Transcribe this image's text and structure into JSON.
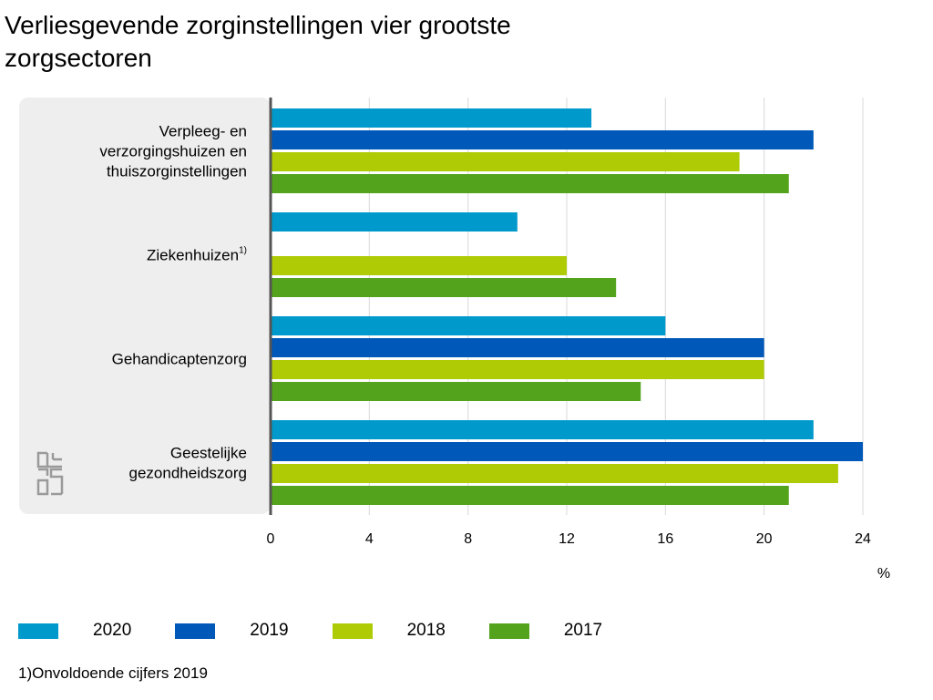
{
  "title": "Verliesgevende zorginstellingen vier grootste zorgsectoren",
  "footnote": "1)Onvoldoende cijfers 2019",
  "logo_text": "cbs",
  "legend": {
    "items": [
      {
        "label": "2020",
        "color": "#0099cc"
      },
      {
        "label": "2019",
        "color": "#0058b8"
      },
      {
        "label": "2018",
        "color": "#afcb05"
      },
      {
        "label": "2017",
        "color": "#53a31d"
      }
    ]
  },
  "chart_data": {
    "type": "bar",
    "orientation": "horizontal",
    "title": "Verliesgevende zorginstellingen vier grootste zorgsectoren",
    "categories": [
      [
        "Verpleeg- en",
        "verzorgingshuizen en",
        "thuiszorginstellingen"
      ],
      [
        "Ziekenhuizen"
      ],
      [
        "Gehandicaptenzorg"
      ],
      [
        "Geestelijke",
        "gezondheidszorg"
      ]
    ],
    "category_superscripts": [
      "",
      "1)",
      "",
      ""
    ],
    "series": [
      {
        "name": "2020",
        "color": "#0099cc",
        "values": [
          13,
          10,
          16,
          22
        ]
      },
      {
        "name": "2019",
        "color": "#0058b8",
        "values": [
          22,
          null,
          20,
          24
        ]
      },
      {
        "name": "2018",
        "color": "#afcb05",
        "values": [
          19,
          12,
          20,
          23
        ]
      },
      {
        "name": "2017",
        "color": "#53a31d",
        "values": [
          21,
          14,
          15,
          21
        ]
      }
    ],
    "xlim": [
      0,
      24
    ],
    "xticks": [
      0,
      4,
      8,
      12,
      16,
      20,
      24
    ],
    "xlabel": "%",
    "grid": true,
    "legend_position": "bottom"
  }
}
